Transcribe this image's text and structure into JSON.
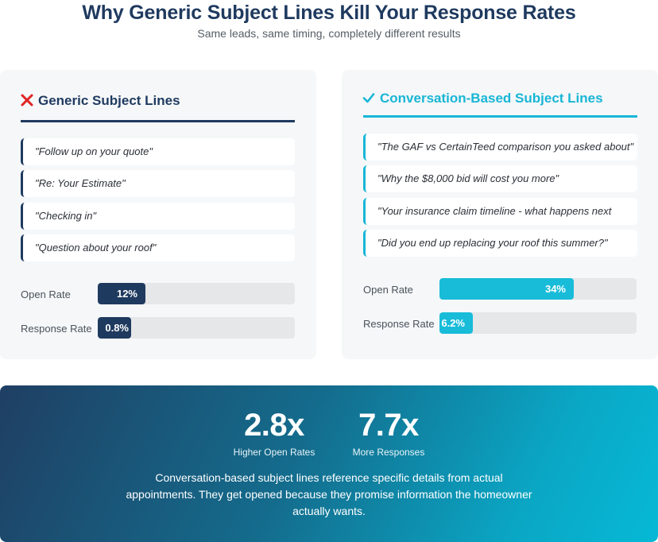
{
  "header": {
    "title": "Why Generic Subject Lines Kill Your Response Rates",
    "subtitle": "Same leads, same timing, completely different results"
  },
  "generic": {
    "icon": "x-icon",
    "heading": "Generic Subject Lines",
    "accent": "#1f3a5f",
    "quotes": [
      "\"Follow up on your quote\"",
      "\"Re: Your Estimate\"",
      "\"Checking in\"",
      "\"Question about your roof\""
    ]
  },
  "conversation": {
    "icon": "check-icon",
    "heading": "Conversation-Based Subject Lines",
    "accent": "#18b6d6",
    "quotes": [
      "\"The GAF vs CertainTeed comparison you asked about\"",
      "\"Why the $8,000 bid will cost you more\"",
      "\"Your insurance claim timeline - what happens next week\"",
      "\"Did you end up replacing your roof this summer?\""
    ]
  },
  "chart_data": {
    "type": "bar",
    "categories": [
      "Open Rate",
      "Response Rate"
    ],
    "unit": "%",
    "series": [
      {
        "values": [
          12,
          0.8
        ],
        "labels": [
          "12%",
          "0.8%"
        ],
        "color": "#1f3a5f"
      },
      {
        "values": [
          34,
          6.2
        ],
        "labels": [
          "34%",
          "6.2%"
        ],
        "color": "#18bcd9"
      }
    ]
  },
  "summary": {
    "stats": [
      {
        "value": "2.8x",
        "caption": "Higher Open Rates"
      },
      {
        "value": "7.7x",
        "caption": "More Responses"
      }
    ],
    "text": "Conversation-based subject lines reference specific details from actual appointments. They get opened because they promise information the homeowner actually wants."
  }
}
